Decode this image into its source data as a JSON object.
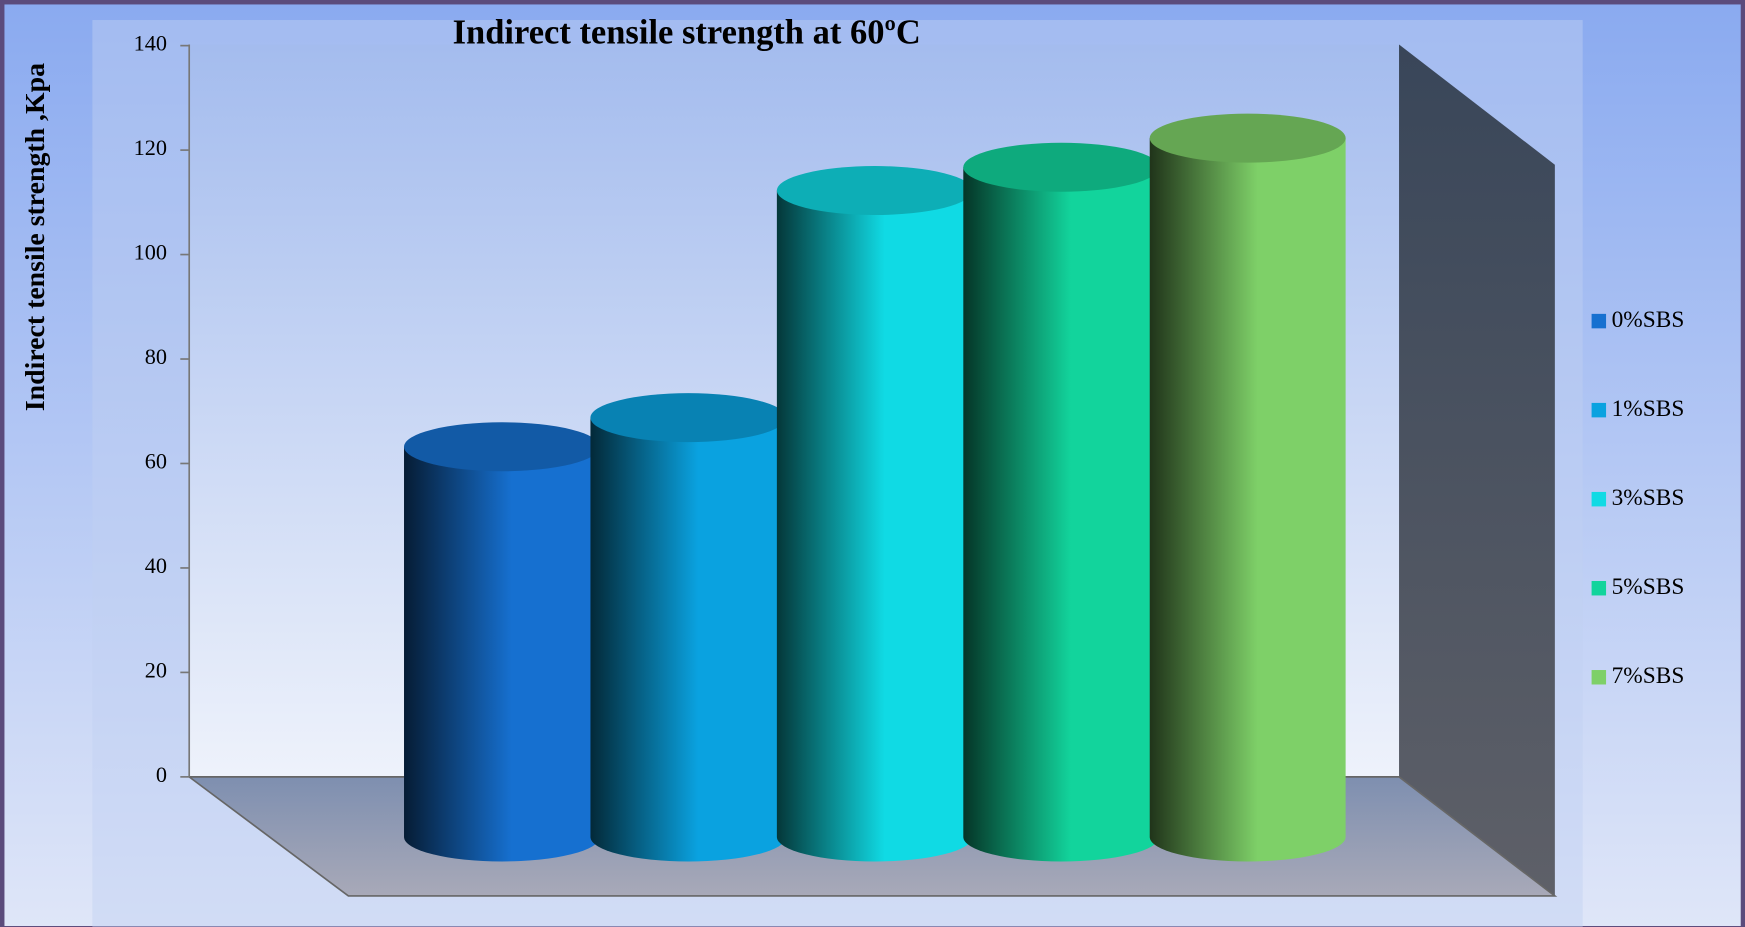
{
  "chart_data": {
    "type": "bar3d-cylinder",
    "title": "Indirect tensile strength at 60ºC",
    "y_label": "Indirect tensile strength ,Kpa",
    "series": [
      {
        "name": "0%SBS",
        "color": "#1670d0",
        "values": [
          67
        ]
      },
      {
        "name": "1%SBS",
        "color": "#0aa2e0",
        "values": [
          72
        ]
      },
      {
        "name": "3%SBS",
        "color": "#10dae4",
        "values": [
          111
        ]
      },
      {
        "name": "5%SBS",
        "color": "#12d49c",
        "values": [
          115
        ]
      },
      {
        "name": "7%SBS",
        "color": "#7ed068",
        "values": [
          120
        ]
      }
    ],
    "ylim": [
      0,
      140
    ],
    "yticks": [
      0,
      20,
      40,
      60,
      80,
      100,
      120,
      140
    ],
    "legend": "right"
  }
}
